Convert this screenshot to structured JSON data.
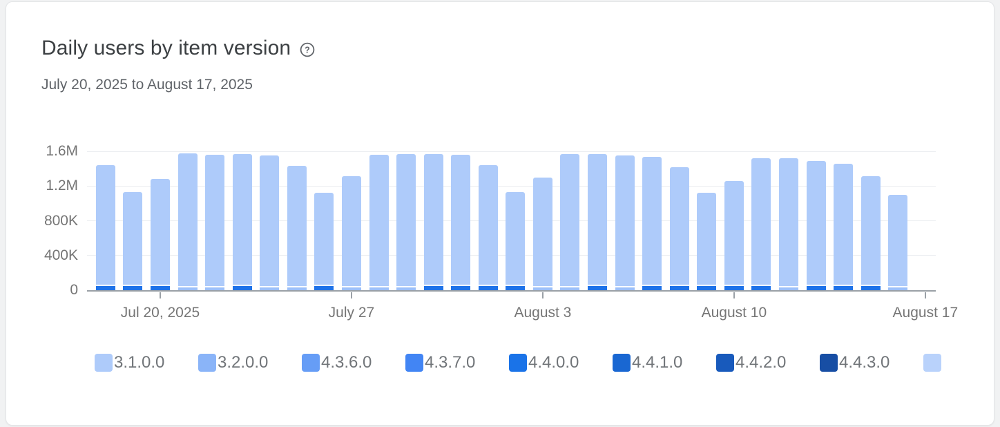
{
  "header": {
    "title": "Daily users by item version",
    "help_icon": "help-circle-icon",
    "date_range": "July 20, 2025 to August 17, 2025"
  },
  "colors": {
    "page_bg": "#f1f2f3",
    "card_bg": "#ffffff",
    "title_text": "#3c4043",
    "subtitle_text": "#5f6368",
    "axis_text": "#757575",
    "axis_line": "#9aa0a6",
    "gridline": "#ebedf0",
    "bar_main": "#aecbfa",
    "strip_dark": "#1e72e8",
    "strip_light": "#9dc0f9",
    "legend_text": "#717579"
  },
  "chart_data": {
    "type": "bar",
    "stacked": true,
    "title": "Daily users by item version",
    "subtitle": "July 20, 2025 to August 17, 2025",
    "ylim": [
      0,
      1600000
    ],
    "grid": true,
    "legend_position": "bottom",
    "dominant_series": "3.1.0.0",
    "note": "Each daily bar is almost entirely version 3.1.0.0 (light blue); a thin stacked strip of the remaining versions sits at the bottom of each bar, colored dark or light blue depending on the day's version mix.",
    "yticks": [
      {
        "label": "1.6M",
        "value": 1600000
      },
      {
        "label": "1.2M",
        "value": 1200000
      },
      {
        "label": "800K",
        "value": 800000
      },
      {
        "label": "400K",
        "value": 400000
      },
      {
        "label": "0",
        "value": 0
      }
    ],
    "xticks": [
      {
        "label": "Jul 20, 2025",
        "day_index": 2
      },
      {
        "label": "July 27",
        "day_index": 9
      },
      {
        "label": "August 3",
        "day_index": 16
      },
      {
        "label": "August 10",
        "day_index": 23
      },
      {
        "label": "August 17",
        "day_index": 30
      }
    ],
    "days": [
      {
        "total": 1440000,
        "others": 45000,
        "mix": "dark"
      },
      {
        "total": 1130000,
        "others": 45000,
        "mix": "dark"
      },
      {
        "total": 1280000,
        "others": 45000,
        "mix": "dark"
      },
      {
        "total": 1580000,
        "others": 30000,
        "mix": "light"
      },
      {
        "total": 1560000,
        "others": 30000,
        "mix": "light"
      },
      {
        "total": 1570000,
        "others": 45000,
        "mix": "dark"
      },
      {
        "total": 1550000,
        "others": 30000,
        "mix": "light"
      },
      {
        "total": 1430000,
        "others": 30000,
        "mix": "light"
      },
      {
        "total": 1120000,
        "others": 45000,
        "mix": "dark"
      },
      {
        "total": 1310000,
        "others": 30000,
        "mix": "light"
      },
      {
        "total": 1560000,
        "others": 30000,
        "mix": "light"
      },
      {
        "total": 1570000,
        "others": 30000,
        "mix": "light"
      },
      {
        "total": 1570000,
        "others": 45000,
        "mix": "dark"
      },
      {
        "total": 1560000,
        "others": 45000,
        "mix": "dark"
      },
      {
        "total": 1440000,
        "others": 45000,
        "mix": "dark"
      },
      {
        "total": 1130000,
        "others": 45000,
        "mix": "dark"
      },
      {
        "total": 1300000,
        "others": 30000,
        "mix": "light"
      },
      {
        "total": 1570000,
        "others": 30000,
        "mix": "light"
      },
      {
        "total": 1570000,
        "others": 45000,
        "mix": "dark"
      },
      {
        "total": 1550000,
        "others": 30000,
        "mix": "light"
      },
      {
        "total": 1540000,
        "others": 45000,
        "mix": "dark"
      },
      {
        "total": 1420000,
        "others": 45000,
        "mix": "dark"
      },
      {
        "total": 1120000,
        "others": 45000,
        "mix": "dark"
      },
      {
        "total": 1260000,
        "others": 45000,
        "mix": "dark"
      },
      {
        "total": 1520000,
        "others": 45000,
        "mix": "dark"
      },
      {
        "total": 1520000,
        "others": 30000,
        "mix": "light"
      },
      {
        "total": 1490000,
        "others": 45000,
        "mix": "dark"
      },
      {
        "total": 1460000,
        "others": 45000,
        "mix": "dark"
      },
      {
        "total": 1310000,
        "others": 45000,
        "mix": "dark"
      },
      {
        "total": 1100000,
        "others": 30000,
        "mix": "light"
      }
    ]
  },
  "legend": {
    "items": [
      {
        "label": "3.1.0.0",
        "color": "#aecbfa"
      },
      {
        "label": "3.2.0.0",
        "color": "#8ab4f8"
      },
      {
        "label": "4.3.6.0",
        "color": "#669df6"
      },
      {
        "label": "4.3.7.0",
        "color": "#4285f4"
      },
      {
        "label": "4.4.0.0",
        "color": "#1a73e8"
      },
      {
        "label": "4.4.1.0",
        "color": "#1967d2"
      },
      {
        "label": "4.4.2.0",
        "color": "#185abc"
      },
      {
        "label": "4.4.3.0",
        "color": "#174ea4"
      },
      {
        "label": "",
        "color": "#b9d2fb"
      }
    ]
  }
}
